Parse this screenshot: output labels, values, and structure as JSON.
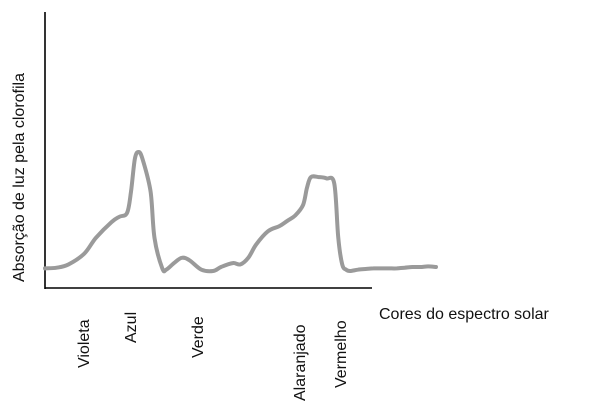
{
  "chart_data": {
    "type": "line",
    "title": "",
    "xlabel": "Cores do espectro solar",
    "ylabel": "Absorção de luz pela clorofila",
    "tick_labels": [
      "Violeta",
      "Azul",
      "Verde",
      "Alaranjado",
      "Vermelho"
    ],
    "series": [
      {
        "values_note": "",
        "x": [
          0,
          3,
          6,
          10,
          13,
          17,
          19,
          21,
          22,
          23,
          24,
          25,
          27,
          28,
          30,
          31,
          33,
          35,
          37,
          40,
          43,
          45,
          48,
          50,
          52,
          54,
          57,
          60,
          62,
          64,
          66,
          67,
          68,
          70,
          72,
          74,
          75,
          76,
          77,
          78,
          80,
          82,
          84,
          86,
          88,
          90,
          92,
          94,
          96,
          98,
          100
        ],
        "y": [
          2,
          2.5,
          5,
          13,
          25,
          37,
          41,
          44,
          60,
          85,
          90,
          84,
          60,
          25,
          2,
          1,
          6,
          10,
          8,
          1,
          0,
          3,
          6,
          5,
          10,
          20,
          30,
          34,
          38,
          42,
          50,
          63,
          71,
          71,
          70,
          66,
          25,
          5,
          1,
          0,
          1,
          1.5,
          2,
          2,
          2,
          2,
          2.5,
          3,
          3,
          3.5,
          3
        ],
        "color": "#9a9a9a"
      }
    ]
  }
}
